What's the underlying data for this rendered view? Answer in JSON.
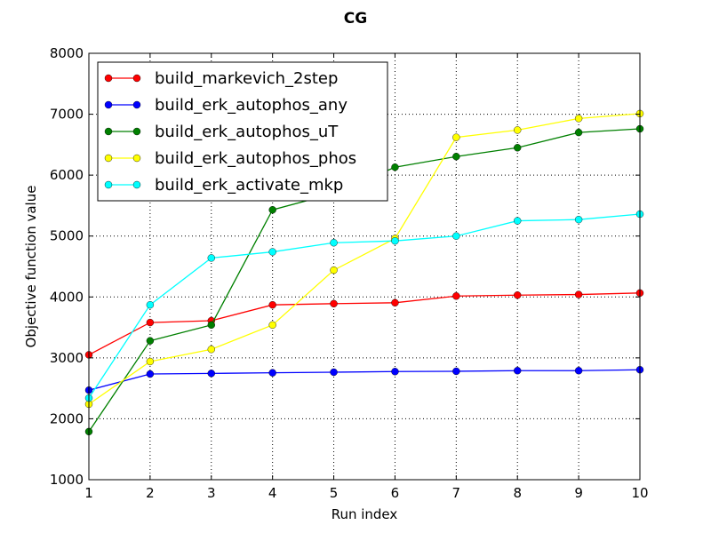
{
  "chart_data": {
    "type": "line",
    "title": "CG",
    "xlabel": "Run index",
    "ylabel": "Objective function value",
    "xlim": [
      1,
      10
    ],
    "ylim": [
      1000,
      8000
    ],
    "x": [
      1,
      2,
      3,
      4,
      5,
      6,
      7,
      8,
      9,
      10
    ],
    "xticks": [
      1,
      2,
      3,
      4,
      5,
      6,
      7,
      8,
      9,
      10
    ],
    "yticks": [
      1000,
      2000,
      3000,
      4000,
      5000,
      6000,
      7000,
      8000
    ],
    "grid": true,
    "legend_position": "top-left",
    "series": [
      {
        "name": "build_markevich_2step",
        "color": "#ff0000",
        "values": [
          3050,
          3580,
          3610,
          3870,
          3890,
          3905,
          4015,
          4030,
          4040,
          4065
        ]
      },
      {
        "name": "build_erk_autophos_any",
        "color": "#0000ff",
        "values": [
          2470,
          2735,
          2745,
          2755,
          2765,
          2775,
          2780,
          2790,
          2790,
          2805
        ]
      },
      {
        "name": "build_erk_autophos_uT",
        "color": "#008000",
        "values": [
          1790,
          3280,
          3540,
          5430,
          5700,
          6130,
          6305,
          6450,
          6700,
          6760
        ]
      },
      {
        "name": "build_erk_autophos_phos",
        "color": "#ffff00",
        "values": [
          2240,
          2940,
          3140,
          3540,
          4440,
          4960,
          6620,
          6740,
          6930,
          7010
        ]
      },
      {
        "name": "build_erk_activate_mkp",
        "color": "#00ffff",
        "values": [
          2340,
          3870,
          4640,
          4740,
          4890,
          4920,
          5000,
          5250,
          5270,
          5360
        ]
      }
    ]
  }
}
